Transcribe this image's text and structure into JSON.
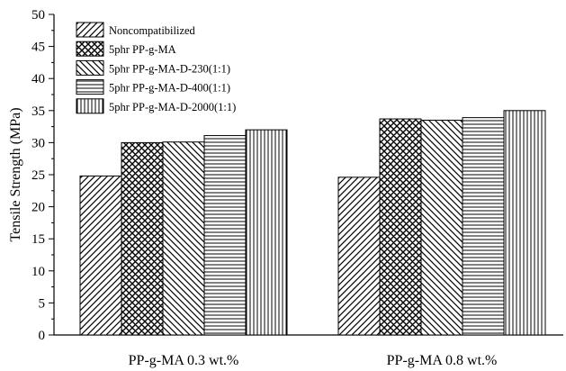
{
  "chart_data": {
    "type": "bar",
    "title": "",
    "xlabel": "",
    "ylabel": "Tensile Strength (MPa)",
    "ylim": [
      0,
      50
    ],
    "yticks": [
      0,
      5,
      10,
      15,
      20,
      25,
      30,
      35,
      40,
      45,
      50
    ],
    "grid": false,
    "legend_position": "top-left",
    "categories": [
      "PP-g-MA 0.3 wt.%",
      "PP-g-MA 0.8 wt.%"
    ],
    "series": [
      {
        "name": "Noncompatibilized",
        "pattern": "diagonal-forward",
        "values": [
          24.8,
          24.6
        ]
      },
      {
        "name": "5phr PP-g-MA",
        "pattern": "crosshatch",
        "values": [
          30.0,
          33.7
        ]
      },
      {
        "name": "5phr PP-g-MA-D-230(1:1)",
        "pattern": "diagonal-back",
        "values": [
          30.1,
          33.5
        ]
      },
      {
        "name": "5phr PP-g-MA-D-400(1:1)",
        "pattern": "horizontal",
        "values": [
          31.1,
          33.9
        ]
      },
      {
        "name": "5phr PP-g-MA-D-2000(1:1)",
        "pattern": "vertical",
        "values": [
          32.0,
          35.0
        ]
      }
    ],
    "colors": {
      "ink": "#000000",
      "background": "#ffffff"
    }
  }
}
